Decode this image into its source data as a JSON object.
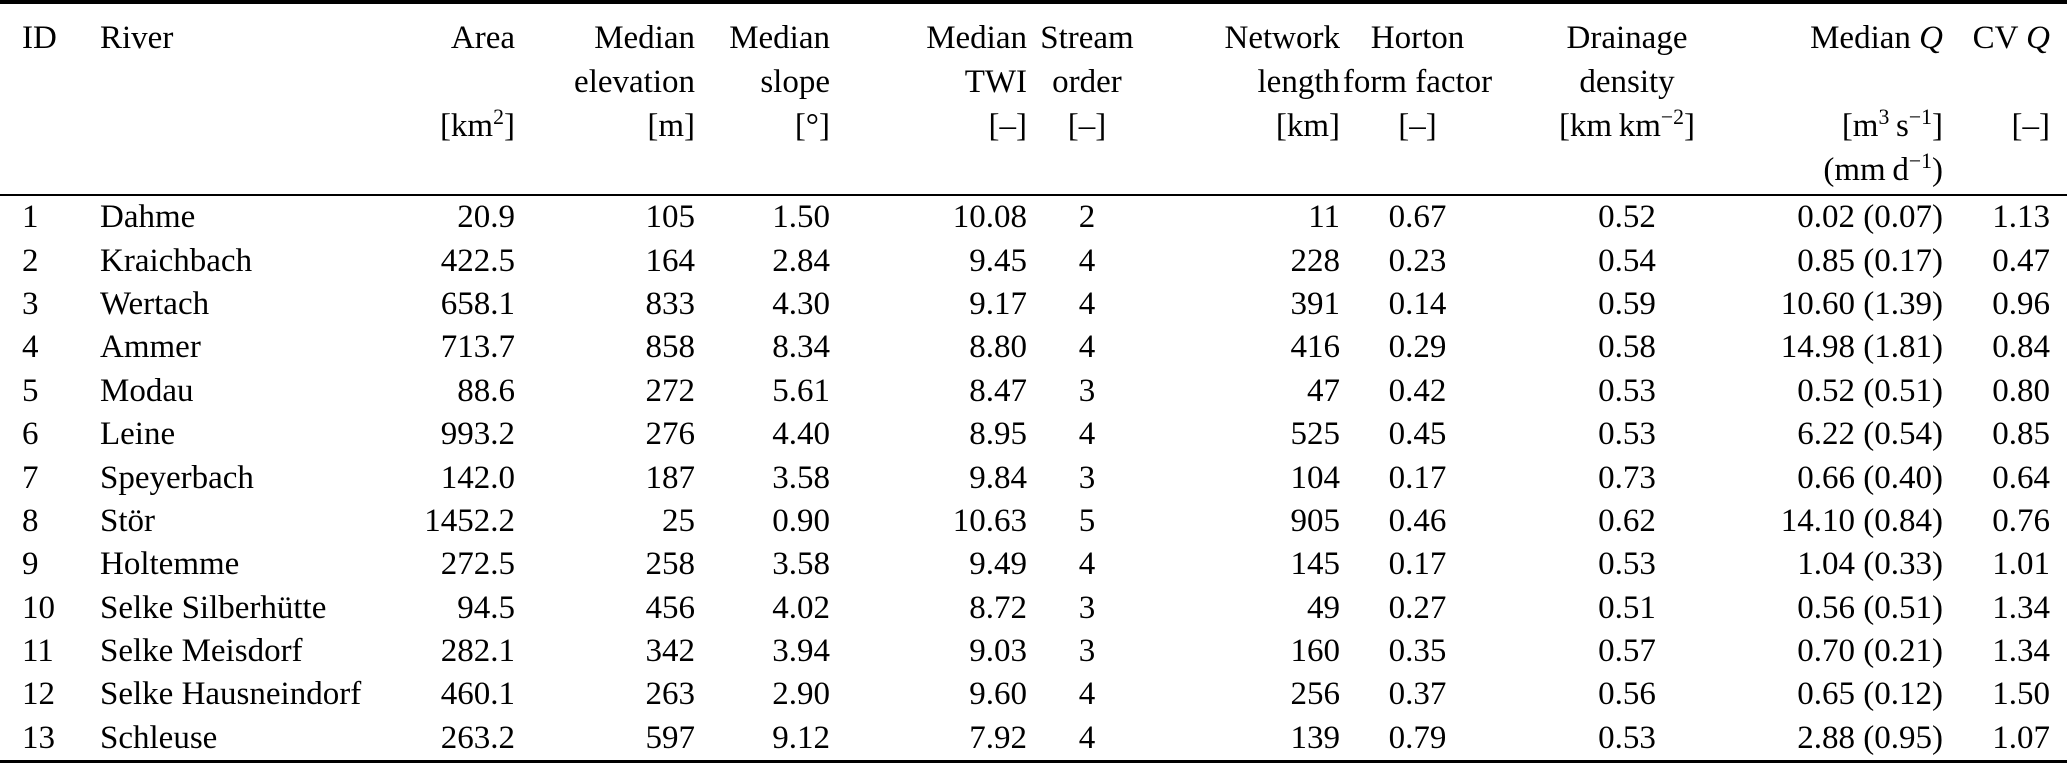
{
  "colors": {
    "text": "#000000",
    "background": "#ffffff",
    "rule": "#000000"
  },
  "table": {
    "columns": [
      {
        "name": "id",
        "align": "left",
        "line1": [
          {
            "t": "ID"
          }
        ]
      },
      {
        "name": "river",
        "align": "left",
        "line1": [
          {
            "t": "River"
          }
        ]
      },
      {
        "name": "area",
        "align": "right",
        "line1": [
          {
            "t": "Area"
          }
        ],
        "unit": [
          {
            "t": "[km"
          },
          {
            "t": "2",
            "sup": true
          },
          {
            "t": "]"
          }
        ]
      },
      {
        "name": "median-elevation",
        "align": "right",
        "line1": [
          {
            "t": "Median"
          }
        ],
        "line2": [
          {
            "t": "elevation"
          }
        ],
        "unit": [
          {
            "t": "[m]"
          }
        ]
      },
      {
        "name": "median-slope",
        "align": "right",
        "line1": [
          {
            "t": "Median"
          }
        ],
        "line2": [
          {
            "t": "slope"
          }
        ],
        "unit": [
          {
            "t": "[°]"
          }
        ]
      },
      {
        "name": "median-twi",
        "align": "right",
        "line1": [
          {
            "t": "Median"
          }
        ],
        "line2": [
          {
            "t": "TWI"
          }
        ],
        "unit": [
          {
            "t": "[–]"
          }
        ]
      },
      {
        "name": "stream-order",
        "align": "center",
        "line1": [
          {
            "t": "Stream"
          }
        ],
        "line2": [
          {
            "t": "order"
          }
        ],
        "unit": [
          {
            "t": "[–]"
          }
        ]
      },
      {
        "name": "network-length",
        "align": "right",
        "line1": [
          {
            "t": "Network"
          }
        ],
        "line2": [
          {
            "t": "length"
          }
        ],
        "unit": [
          {
            "t": "[km]"
          }
        ]
      },
      {
        "name": "horton-form-factor",
        "align": "center",
        "line1": [
          {
            "t": "Horton"
          }
        ],
        "line2": [
          {
            "t": "form factor"
          }
        ],
        "unit": [
          {
            "t": "[–]"
          }
        ]
      },
      {
        "name": "drainage-density",
        "align": "center",
        "line1": [
          {
            "t": "Drainage"
          }
        ],
        "line2": [
          {
            "t": "density"
          }
        ],
        "unit": [
          {
            "t": "[km km"
          },
          {
            "t": "−2",
            "sup": true
          },
          {
            "t": "]"
          }
        ]
      },
      {
        "name": "median-q",
        "align": "right",
        "line1": [
          {
            "t": "Median "
          },
          {
            "t": "Q",
            "italic": true
          }
        ],
        "unit": [
          {
            "t": "[m"
          },
          {
            "t": "3",
            "sup": true
          },
          {
            "t": " s"
          },
          {
            "t": "−1",
            "sup": true
          },
          {
            "t": "]"
          }
        ],
        "unit2": [
          {
            "t": "(mm d"
          },
          {
            "t": "−1",
            "sup": true
          },
          {
            "t": ")"
          }
        ]
      },
      {
        "name": "cv-q",
        "align": "right",
        "line1": [
          {
            "t": "CV "
          },
          {
            "t": "Q",
            "italic": true
          }
        ],
        "unit": [
          {
            "t": "[–]"
          }
        ]
      }
    ],
    "rows": [
      {
        "cells": [
          "1",
          "Dahme",
          "20.9",
          "105",
          "1.50",
          "10.08",
          "2",
          "11",
          "0.67",
          "0.52",
          "0.02 (0.07)",
          "1.13"
        ]
      },
      {
        "cells": [
          "2",
          "Kraichbach",
          "422.5",
          "164",
          "2.84",
          "9.45",
          "4",
          "228",
          "0.23",
          "0.54",
          "0.85 (0.17)",
          "0.47"
        ]
      },
      {
        "cells": [
          "3",
          "Wertach",
          "658.1",
          "833",
          "4.30",
          "9.17",
          "4",
          "391",
          "0.14",
          "0.59",
          "10.60 (1.39)",
          "0.96"
        ]
      },
      {
        "cells": [
          "4",
          "Ammer",
          "713.7",
          "858",
          "8.34",
          "8.80",
          "4",
          "416",
          "0.29",
          "0.58",
          "14.98 (1.81)",
          "0.84"
        ]
      },
      {
        "cells": [
          "5",
          "Modau",
          "88.6",
          "272",
          "5.61",
          "8.47",
          "3",
          "47",
          "0.42",
          "0.53",
          "0.52 (0.51)",
          "0.80"
        ]
      },
      {
        "cells": [
          "6",
          "Leine",
          "993.2",
          "276",
          "4.40",
          "8.95",
          "4",
          "525",
          "0.45",
          "0.53",
          "6.22 (0.54)",
          "0.85"
        ]
      },
      {
        "cells": [
          "7",
          "Speyerbach",
          "142.0",
          "187",
          "3.58",
          "9.84",
          "3",
          "104",
          "0.17",
          "0.73",
          "0.66 (0.40)",
          "0.64"
        ]
      },
      {
        "cells": [
          "8",
          "Stör",
          "1452.2",
          "25",
          "0.90",
          "10.63",
          "5",
          "905",
          "0.46",
          "0.62",
          "14.10 (0.84)",
          "0.76"
        ]
      },
      {
        "cells": [
          "9",
          "Holtemme",
          "272.5",
          "258",
          "3.58",
          "9.49",
          "4",
          "145",
          "0.17",
          "0.53",
          "1.04 (0.33)",
          "1.01"
        ]
      },
      {
        "cells": [
          "10",
          "Selke Silberhütte",
          "94.5",
          "456",
          "4.02",
          "8.72",
          "3",
          "49",
          "0.27",
          "0.51",
          "0.56 (0.51)",
          "1.34"
        ]
      },
      {
        "cells": [
          "11",
          "Selke Meisdorf",
          "282.1",
          "342",
          "3.94",
          "9.03",
          "3",
          "160",
          "0.35",
          "0.57",
          "0.70 (0.21)",
          "1.34"
        ]
      },
      {
        "cells": [
          "12",
          "Selke Hausneindorf",
          "460.1",
          "263",
          "2.90",
          "9.60",
          "4",
          "256",
          "0.37",
          "0.56",
          "0.65 (0.12)",
          "1.50"
        ]
      },
      {
        "cells": [
          "13",
          "Schleuse",
          "263.2",
          "597",
          "9.12",
          "7.92",
          "4",
          "139",
          "0.79",
          "0.53",
          "2.88 (0.95)",
          "1.07"
        ]
      }
    ]
  }
}
